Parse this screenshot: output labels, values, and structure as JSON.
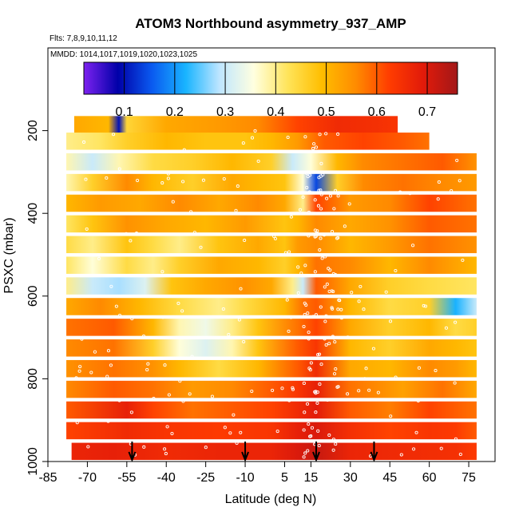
{
  "chart_data": {
    "type": "heatmap",
    "title": "ATOM3 Northbound asymmetry_937_AMP",
    "subtitle_flights": "Flts: 7,8,9,10,11,12",
    "subtitle_dates": "MMDD: 1014,1017,1019,1020,1023,1025",
    "xlabel": "Latitude (deg N)",
    "ylabel": "PSXC (mbar)",
    "xlim": [
      -85,
      85
    ],
    "ylim": [
      1000,
      0
    ],
    "x_ticks": [
      -85,
      -70,
      -55,
      -40,
      -25,
      -10,
      5,
      15,
      30,
      45,
      60,
      75
    ],
    "y_ticks": [
      200,
      400,
      600,
      800,
      1000
    ],
    "colorbar": {
      "range": [
        0.02,
        0.76
      ],
      "ticks": [
        0.1,
        0.2,
        0.3,
        0.4,
        0.5,
        0.6,
        0.7
      ],
      "stops": [
        "#7d22f0",
        "#0000a8",
        "#0a5af0",
        "#19b4ff",
        "#bfe6ff",
        "#ffffe0",
        "#ffe45a",
        "#ffbe00",
        "#ff8c00",
        "#ff3c00",
        "#e11a0a",
        "#a21818"
      ]
    },
    "arrow_latitudes": [
      -53,
      -10,
      17,
      39
    ],
    "layers": [
      {
        "p": 975,
        "values": [
          [
            -76,
            0.67
          ],
          [
            -60,
            0.68
          ],
          [
            -40,
            0.66
          ],
          [
            -20,
            0.67
          ],
          [
            0,
            0.67
          ],
          [
            10,
            0.7
          ],
          [
            17,
            0.72
          ],
          [
            30,
            0.67
          ],
          [
            50,
            0.66
          ],
          [
            70,
            0.65
          ],
          [
            78,
            0.63
          ]
        ]
      },
      {
        "p": 925,
        "values": [
          [
            -78,
            0.62
          ],
          [
            -55,
            0.66
          ],
          [
            -40,
            0.64
          ],
          [
            -20,
            0.63
          ],
          [
            0,
            0.64
          ],
          [
            10,
            0.68
          ],
          [
            17,
            0.7
          ],
          [
            30,
            0.65
          ],
          [
            45,
            0.62
          ],
          [
            60,
            0.64
          ],
          [
            70,
            0.63
          ],
          [
            78,
            0.6
          ]
        ]
      },
      {
        "p": 875,
        "values": [
          [
            -78,
            0.6
          ],
          [
            -55,
            0.68
          ],
          [
            -45,
            0.62
          ],
          [
            -30,
            0.58
          ],
          [
            -15,
            0.6
          ],
          [
            0,
            0.62
          ],
          [
            10,
            0.66
          ],
          [
            17,
            0.69
          ],
          [
            30,
            0.6
          ],
          [
            45,
            0.57
          ],
          [
            60,
            0.62
          ],
          [
            78,
            0.58
          ]
        ]
      },
      {
        "p": 825,
        "values": [
          [
            -78,
            0.56
          ],
          [
            -60,
            0.6
          ],
          [
            -45,
            0.58
          ],
          [
            -30,
            0.54
          ],
          [
            -15,
            0.56
          ],
          [
            0,
            0.6
          ],
          [
            10,
            0.64
          ],
          [
            17,
            0.68
          ],
          [
            30,
            0.58
          ],
          [
            50,
            0.53
          ],
          [
            65,
            0.58
          ],
          [
            78,
            0.52
          ]
        ]
      },
      {
        "p": 775,
        "values": [
          [
            -78,
            0.55
          ],
          [
            -60,
            0.58
          ],
          [
            -45,
            0.55
          ],
          [
            -35,
            0.5
          ],
          [
            -20,
            0.44
          ],
          [
            -5,
            0.5
          ],
          [
            10,
            0.6
          ],
          [
            17,
            0.66
          ],
          [
            30,
            0.52
          ],
          [
            45,
            0.5
          ],
          [
            60,
            0.56
          ],
          [
            70,
            0.54
          ],
          [
            78,
            0.5
          ]
        ]
      },
      {
        "p": 725,
        "values": [
          [
            -78,
            0.56
          ],
          [
            -60,
            0.58
          ],
          [
            -45,
            0.46
          ],
          [
            -35,
            0.36
          ],
          [
            -25,
            0.32
          ],
          [
            -15,
            0.38
          ],
          [
            -5,
            0.48
          ],
          [
            10,
            0.6
          ],
          [
            17,
            0.64
          ],
          [
            30,
            0.5
          ],
          [
            45,
            0.46
          ],
          [
            60,
            0.52
          ],
          [
            70,
            0.5
          ],
          [
            78,
            0.48
          ]
        ]
      },
      {
        "p": 675,
        "values": [
          [
            -78,
            0.58
          ],
          [
            -60,
            0.6
          ],
          [
            -45,
            0.5
          ],
          [
            -35,
            0.38
          ],
          [
            -25,
            0.34
          ],
          [
            -15,
            0.4
          ],
          [
            -5,
            0.48
          ],
          [
            10,
            0.58
          ],
          [
            17,
            0.62
          ],
          [
            30,
            0.52
          ],
          [
            45,
            0.46
          ],
          [
            60,
            0.5
          ],
          [
            70,
            0.44
          ],
          [
            78,
            0.46
          ]
        ]
      },
      {
        "p": 625,
        "values": [
          [
            -78,
            0.52
          ],
          [
            -65,
            0.56
          ],
          [
            -50,
            0.5
          ],
          [
            -35,
            0.44
          ],
          [
            -20,
            0.4
          ],
          [
            -10,
            0.44
          ],
          [
            5,
            0.5
          ],
          [
            12,
            0.58
          ],
          [
            17,
            0.6
          ],
          [
            30,
            0.5
          ],
          [
            45,
            0.44
          ],
          [
            60,
            0.46
          ],
          [
            70,
            0.22
          ],
          [
            78,
            0.3
          ]
        ]
      },
      {
        "p": 575,
        "values": [
          [
            -78,
            0.4
          ],
          [
            -68,
            0.3
          ],
          [
            -58,
            0.28
          ],
          [
            -48,
            0.32
          ],
          [
            -38,
            0.48
          ],
          [
            -25,
            0.52
          ],
          [
            -10,
            0.55
          ],
          [
            0,
            0.52
          ],
          [
            8,
            0.4
          ],
          [
            12,
            0.3
          ],
          [
            17,
            0.6
          ],
          [
            30,
            0.52
          ],
          [
            45,
            0.46
          ],
          [
            60,
            0.44
          ],
          [
            78,
            0.42
          ]
        ]
      },
      {
        "p": 525,
        "values": [
          [
            -78,
            0.42
          ],
          [
            -68,
            0.36
          ],
          [
            -55,
            0.44
          ],
          [
            -45,
            0.4
          ],
          [
            -35,
            0.46
          ],
          [
            -20,
            0.52
          ],
          [
            -5,
            0.5
          ],
          [
            5,
            0.46
          ],
          [
            10,
            0.5
          ],
          [
            17,
            0.58
          ],
          [
            30,
            0.56
          ],
          [
            45,
            0.5
          ],
          [
            60,
            0.56
          ],
          [
            78,
            0.5
          ]
        ]
      },
      {
        "p": 475,
        "values": [
          [
            -78,
            0.44
          ],
          [
            -68,
            0.4
          ],
          [
            -55,
            0.48
          ],
          [
            -45,
            0.44
          ],
          [
            -35,
            0.4
          ],
          [
            -20,
            0.48
          ],
          [
            -5,
            0.52
          ],
          [
            5,
            0.48
          ],
          [
            10,
            0.54
          ],
          [
            17,
            0.56
          ],
          [
            30,
            0.5
          ],
          [
            45,
            0.54
          ],
          [
            60,
            0.58
          ],
          [
            78,
            0.55
          ]
        ]
      },
      {
        "p": 425,
        "values": [
          [
            -78,
            0.42
          ],
          [
            -68,
            0.48
          ],
          [
            -55,
            0.55
          ],
          [
            -40,
            0.52
          ],
          [
            -25,
            0.5
          ],
          [
            -10,
            0.54
          ],
          [
            5,
            0.48
          ],
          [
            10,
            0.5
          ],
          [
            17,
            0.56
          ],
          [
            30,
            0.52
          ],
          [
            45,
            0.55
          ],
          [
            60,
            0.6
          ],
          [
            78,
            0.58
          ]
        ]
      },
      {
        "p": 375,
        "values": [
          [
            -78,
            0.5
          ],
          [
            -65,
            0.54
          ],
          [
            -50,
            0.52
          ],
          [
            -35,
            0.56
          ],
          [
            -20,
            0.52
          ],
          [
            -5,
            0.56
          ],
          [
            5,
            0.52
          ],
          [
            12,
            0.4
          ],
          [
            17,
            0.62
          ],
          [
            30,
            0.54
          ],
          [
            45,
            0.56
          ],
          [
            60,
            0.62
          ],
          [
            78,
            0.58
          ]
        ]
      },
      {
        "p": 325,
        "values": [
          [
            -78,
            0.38
          ],
          [
            -68,
            0.46
          ],
          [
            -55,
            0.56
          ],
          [
            -45,
            0.5
          ],
          [
            -30,
            0.46
          ],
          [
            -15,
            0.52
          ],
          [
            -5,
            0.5
          ],
          [
            5,
            0.48
          ],
          [
            12,
            0.36
          ],
          [
            17,
            0.14
          ],
          [
            25,
            0.46
          ],
          [
            35,
            0.56
          ],
          [
            50,
            0.58
          ],
          [
            65,
            0.56
          ],
          [
            78,
            0.54
          ]
        ]
      },
      {
        "p": 275,
        "values": [
          [
            -78,
            0.38
          ],
          [
            -68,
            0.3
          ],
          [
            -58,
            0.38
          ],
          [
            -45,
            0.44
          ],
          [
            -30,
            0.46
          ],
          [
            -15,
            0.5
          ],
          [
            0,
            0.46
          ],
          [
            8,
            0.3
          ],
          [
            15,
            0.36
          ],
          [
            25,
            0.5
          ],
          [
            35,
            0.56
          ],
          [
            50,
            0.58
          ],
          [
            65,
            0.6
          ],
          [
            78,
            0.55
          ]
        ]
      },
      {
        "p": 225,
        "values": [
          [
            -78,
            0.4
          ],
          [
            -65,
            0.42
          ],
          [
            -55,
            0.46
          ],
          [
            -40,
            0.5
          ],
          [
            -25,
            0.48
          ],
          [
            -10,
            0.48
          ],
          [
            0,
            0.5
          ],
          [
            10,
            0.54
          ],
          [
            20,
            0.6
          ],
          [
            35,
            0.62
          ],
          [
            50,
            0.6
          ],
          [
            60,
            0.58
          ]
        ]
      },
      {
        "p": 185,
        "values": [
          [
            -75,
            0.52
          ],
          [
            -62,
            0.5
          ],
          [
            -58,
            0.1
          ],
          [
            -55,
            0.45
          ],
          [
            -40,
            0.52
          ],
          [
            -20,
            0.54
          ],
          [
            -5,
            0.56
          ],
          [
            10,
            0.62
          ],
          [
            25,
            0.66
          ],
          [
            40,
            0.65
          ],
          [
            48,
            0.64
          ]
        ]
      }
    ]
  }
}
